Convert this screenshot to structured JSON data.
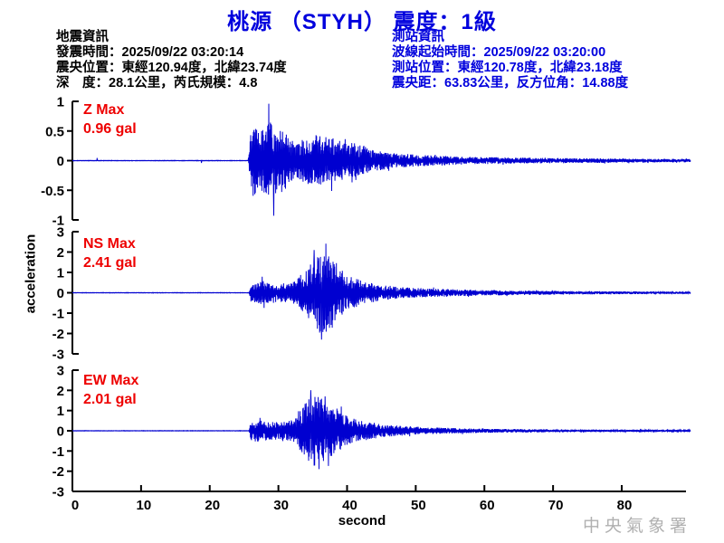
{
  "title": "桃源 （STYH） 震度：1級",
  "earthquake_info": {
    "heading": "地震資訊",
    "lines": [
      "發震時間：2025/09/22 03:20:14",
      "震央位置：東經120.94度，北緯23.74度",
      "深　度：28.1公里，芮氏規模：4.8"
    ]
  },
  "station_info": {
    "heading": "測站資訊",
    "lines": [
      "波線起始時間：2025/09/22 03:20:00",
      "測站位置：東經120.78度，北緯23.18度",
      "震央距：63.83公里，反方位角：14.88度"
    ]
  },
  "watermark": "中央氣象署",
  "colors": {
    "title_blue": "#0000dd",
    "label_red": "#ee0000",
    "waveform_blue": "#0000d0",
    "axis_black": "#000000",
    "watermark_gray": "#b0b0b0"
  },
  "chart_data": {
    "type": "line",
    "ylabel": "acceleration",
    "xlabel": "second",
    "xlim": [
      0,
      90
    ],
    "xticks": [
      0,
      10,
      20,
      30,
      40,
      50,
      60,
      70,
      80
    ],
    "grid": false,
    "panels": [
      {
        "name": "Z",
        "label": "Z Max",
        "max_label": "0.96 gal",
        "max_gal": 0.96,
        "unit": "gal",
        "ylim": [
          -1,
          1
        ],
        "yticks": [
          1,
          0.5,
          0,
          -0.5,
          -1
        ],
        "envelope": [
          [
            0,
            0.003
          ],
          [
            25.6,
            0.003
          ],
          [
            25.9,
            0.45
          ],
          [
            26.3,
            0.6
          ],
          [
            27,
            0.5
          ],
          [
            28,
            0.55
          ],
          [
            28.8,
            0.65
          ],
          [
            29.4,
            0.6
          ],
          [
            30,
            0.5
          ],
          [
            30.8,
            0.55
          ],
          [
            31.6,
            0.38
          ],
          [
            33,
            0.32
          ],
          [
            34,
            0.4
          ],
          [
            35,
            0.42
          ],
          [
            36,
            0.45
          ],
          [
            37,
            0.4
          ],
          [
            38,
            0.38
          ],
          [
            39.5,
            0.33
          ],
          [
            41,
            0.3
          ],
          [
            42.5,
            0.25
          ],
          [
            44,
            0.18
          ],
          [
            46,
            0.14
          ],
          [
            48,
            0.12
          ],
          [
            50,
            0.1
          ],
          [
            53,
            0.085
          ],
          [
            56,
            0.07
          ],
          [
            60,
            0.06
          ],
          [
            65,
            0.05
          ],
          [
            70,
            0.045
          ],
          [
            75,
            0.04
          ],
          [
            80,
            0.035
          ],
          [
            85,
            0.03
          ],
          [
            90,
            0.028
          ]
        ],
        "spikes": [
          [
            3.6,
            0.045
          ],
          [
            18.8,
            -0.04
          ],
          [
            28.6,
            0.96
          ],
          [
            29.3,
            -0.93
          ]
        ]
      },
      {
        "name": "NS",
        "label": "NS Max",
        "max_label": "2.41 gal",
        "max_gal": 2.41,
        "unit": "gal",
        "ylim": [
          -3,
          3
        ],
        "yticks": [
          3,
          2,
          1,
          0,
          -1,
          -2,
          -3
        ],
        "envelope": [
          [
            0,
            0.008
          ],
          [
            25.7,
            0.008
          ],
          [
            26,
            0.45
          ],
          [
            26.8,
            0.55
          ],
          [
            27.5,
            0.6
          ],
          [
            28.5,
            0.5
          ],
          [
            29.5,
            0.5
          ],
          [
            30.5,
            0.45
          ],
          [
            31.5,
            0.5
          ],
          [
            32.5,
            0.55
          ],
          [
            33.5,
            1.0
          ],
          [
            34.3,
            1.3
          ],
          [
            35,
            1.6
          ],
          [
            36,
            2.0
          ],
          [
            36.8,
            2.1
          ],
          [
            37.5,
            1.8
          ],
          [
            38.5,
            1.3
          ],
          [
            40,
            0.9
          ],
          [
            42,
            0.6
          ],
          [
            44,
            0.45
          ],
          [
            46,
            0.35
          ],
          [
            48,
            0.28
          ],
          [
            50,
            0.24
          ],
          [
            53,
            0.2
          ],
          [
            56,
            0.17
          ],
          [
            60,
            0.14
          ],
          [
            65,
            0.11
          ],
          [
            70,
            0.09
          ],
          [
            75,
            0.08
          ],
          [
            80,
            0.07
          ],
          [
            85,
            0.06
          ],
          [
            90,
            0.055
          ]
        ],
        "spikes": [
          [
            35.2,
            2.1
          ],
          [
            36.3,
            -2.3
          ],
          [
            36.9,
            2.41
          ]
        ]
      },
      {
        "name": "EW",
        "label": "EW Max",
        "max_label": "2.01 gal",
        "max_gal": 2.01,
        "unit": "gal",
        "ylim": [
          -3,
          3
        ],
        "yticks": [
          3,
          2,
          1,
          0,
          -1,
          -2,
          -3
        ],
        "envelope": [
          [
            0,
            0.008
          ],
          [
            25.7,
            0.008
          ],
          [
            26,
            0.5
          ],
          [
            26.8,
            0.55
          ],
          [
            27.8,
            0.5
          ],
          [
            28.8,
            0.45
          ],
          [
            29.8,
            0.5
          ],
          [
            30.8,
            0.45
          ],
          [
            31.8,
            0.5
          ],
          [
            32.5,
            0.7
          ],
          [
            33.5,
            1.2
          ],
          [
            34.5,
            1.6
          ],
          [
            35.3,
            1.75
          ],
          [
            36,
            1.65
          ],
          [
            37,
            1.5
          ],
          [
            38,
            1.2
          ],
          [
            39,
            0.95
          ],
          [
            40,
            0.75
          ],
          [
            41.5,
            0.55
          ],
          [
            43,
            0.45
          ],
          [
            45,
            0.35
          ],
          [
            47,
            0.27
          ],
          [
            49,
            0.22
          ],
          [
            51,
            0.18
          ],
          [
            54,
            0.15
          ],
          [
            57,
            0.12
          ],
          [
            60,
            0.1
          ],
          [
            65,
            0.085
          ],
          [
            70,
            0.07
          ],
          [
            75,
            0.06
          ],
          [
            80,
            0.055
          ],
          [
            85,
            0.05
          ],
          [
            90,
            0.045
          ]
        ],
        "spikes": [
          [
            34.7,
            2.01
          ],
          [
            35.9,
            -1.9
          ],
          [
            36.8,
            1.7
          ]
        ]
      }
    ]
  }
}
